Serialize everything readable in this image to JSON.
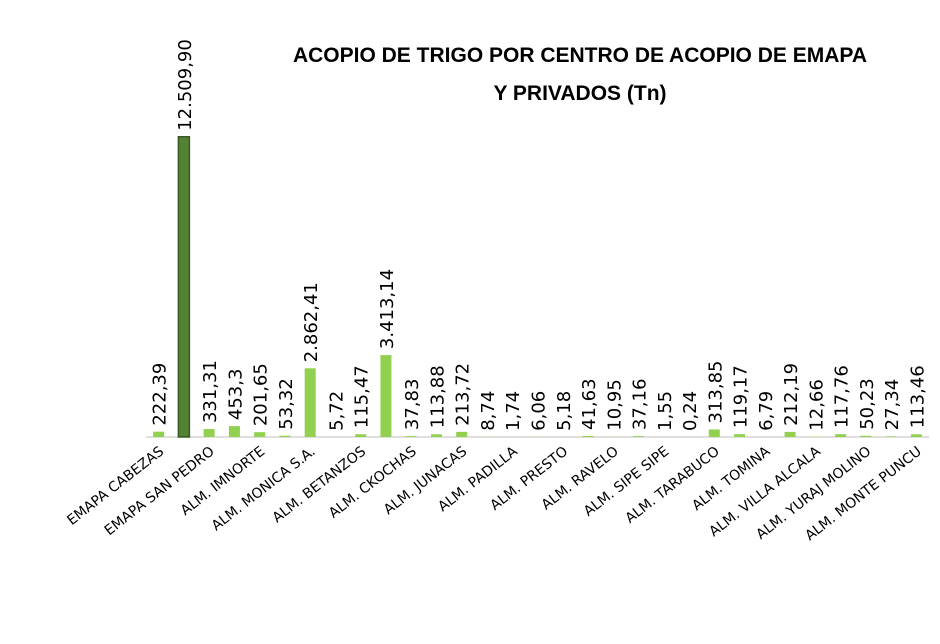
{
  "chart_data": {
    "type": "bar",
    "title": [
      "ACOPIO DE TRIGO POR CENTRO DE ACOPIO DE EMAPA",
      "Y PRIVADOS (Tn)"
    ],
    "categories": [
      "EMAPA CABEZAS",
      null,
      "EMAPA SAN PEDRO",
      null,
      "ALM. IMNORTE",
      null,
      "ALM. MONICA S.A.",
      null,
      "ALM. BETANZOS",
      null,
      "ALM. CKOCHAS",
      null,
      "ALM. JUNACAS",
      null,
      "ALM. PADILLA",
      null,
      "ALM. PRESTO",
      null,
      "ALM. RAVELO",
      null,
      "ALM. SIPE SIPE",
      null,
      "ALM. TARABUCO",
      null,
      "ALM. TOMINA",
      null,
      "ALM. VILLA ALCALA",
      null,
      "ALM. YURAJ MOLINO",
      null,
      "ALM. MONTE PUNCU"
    ],
    "values": [
      222.39,
      12509.9,
      331.31,
      453.3,
      201.65,
      53.32,
      2862.41,
      5.72,
      115.47,
      3413.14,
      37.83,
      113.88,
      213.72,
      8.74,
      1.74,
      6.06,
      5.18,
      41.63,
      10.95,
      37.16,
      1.55,
      0.24,
      313.85,
      119.17,
      6.79,
      212.19,
      12.66,
      117.76,
      50.23,
      27.34,
      113.46
    ],
    "value_labels": [
      "222,39",
      "12.509,90",
      "331,31",
      "453,3",
      "201,65",
      "53,32",
      "2.862,41",
      "5,72",
      "115,47",
      "3.413,14",
      "37,83",
      "113,88",
      "213,72",
      "8,74",
      "1,74",
      "6,06",
      "5,18",
      "41,63",
      "10,95",
      "37,16",
      "1,55",
      "0,24",
      "313,85",
      "119,17",
      "6,79",
      "212,19",
      "12,66",
      "117,76",
      "50,23",
      "27,34",
      "113,46"
    ],
    "color": "#92d050",
    "highlight_color": "#548235",
    "highlight_index": 1,
    "ylim": [
      0,
      14000
    ]
  }
}
